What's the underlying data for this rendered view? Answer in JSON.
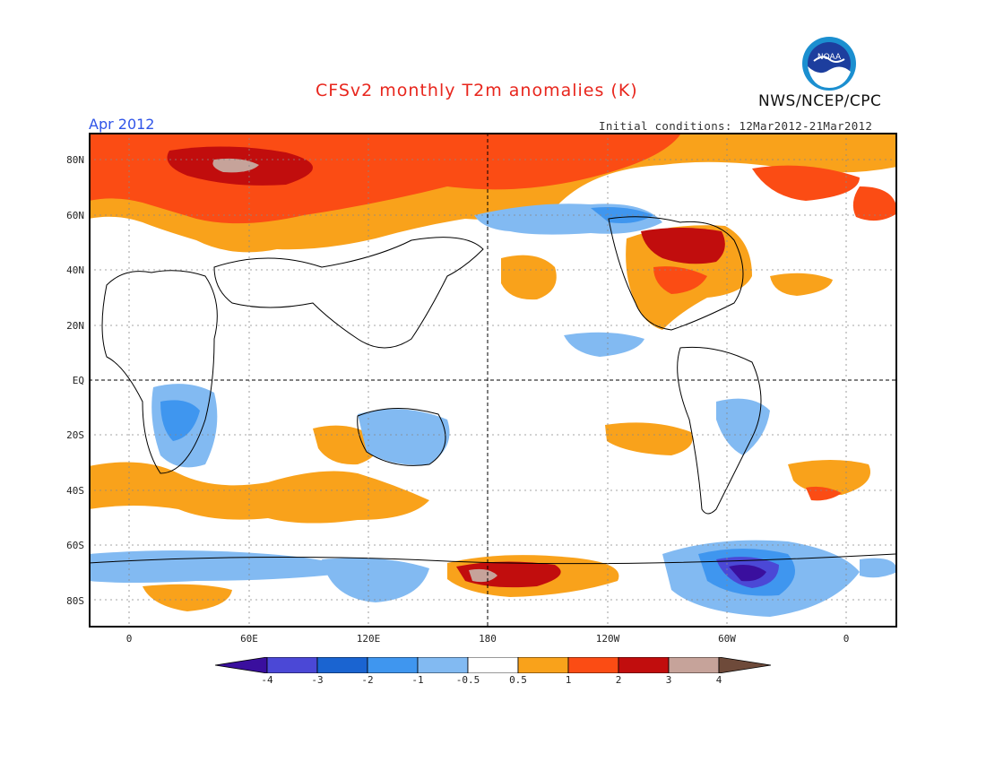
{
  "header": {
    "title": "CFSv2 monthly T2m anomalies (K)",
    "org": "NWS/NCEP/CPC",
    "valid_month": "Apr 2012",
    "initial_conditions": "Initial conditions: 12Mar2012-21Mar2012",
    "logo_text": "NOAA"
  },
  "axes": {
    "lat_labels": [
      "80N",
      "60N",
      "40N",
      "20N",
      "EQ",
      "20S",
      "40S",
      "60S",
      "80S"
    ],
    "lon_labels": [
      "0",
      "60E",
      "120E",
      "180",
      "120W",
      "60W",
      "0"
    ]
  },
  "colorbar": {
    "labels": [
      "-4",
      "-3",
      "-2",
      "-1",
      "-0.5",
      "0.5",
      "1",
      "2",
      "3",
      "4"
    ],
    "colors": [
      "#3a0f9e",
      "#4b48d6",
      "#1a64d1",
      "#3f96ef",
      "#82baf2",
      "#ffffff",
      "#f9a21b",
      "#fb4c14",
      "#c10d0d",
      "#a60011",
      "#c6a39a",
      "#6e4a3a"
    ]
  },
  "colors": {
    "cold_light": "#82baf2",
    "cold_mid": "#3f96ef",
    "cold_strong": "#1a64d1",
    "cold_deep": "#4b48d6",
    "cold_extreme": "#3a0f9e",
    "warm_light": "#f9a21b",
    "warm_mid": "#fb4c14",
    "warm_strong": "#c10d0d",
    "warm_deep": "#a60011",
    "warm_extreme": "#c6a39a"
  }
}
